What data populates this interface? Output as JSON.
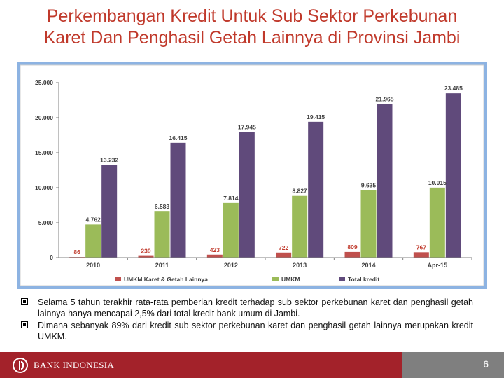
{
  "title": {
    "line1": "Perkembangan Kredit Untuk Sub Sektor Perkebunan",
    "line2": "Karet Dan Penghasil Getah Lainnya di Provinsi Jambi"
  },
  "chart_data": {
    "type": "bar",
    "categories": [
      "2010",
      "2011",
      "2012",
      "2013",
      "2014",
      "Apr-15"
    ],
    "ylim": [
      0,
      25000
    ],
    "yticks": [
      "0",
      "5.000",
      "10.000",
      "15.000",
      "20.000",
      "25.000"
    ],
    "ytick_values": [
      0,
      5000,
      10000,
      15000,
      20000,
      25000
    ],
    "legend_position": "bottom",
    "grid": false,
    "series": [
      {
        "name": "UMKM Karet & Getah Lainnya",
        "color": "#c0504d",
        "values": [
          86,
          239,
          423,
          722,
          809,
          767
        ],
        "labels": [
          "86",
          "239",
          "423",
          "722",
          "809",
          "767"
        ]
      },
      {
        "name": "UMKM",
        "color": "#9bbb59",
        "values": [
          4762,
          6583,
          7814,
          8827,
          9635,
          10015
        ],
        "labels": [
          "4.762",
          "6.583",
          "7.814",
          "8.827",
          "9.635",
          "10.015"
        ]
      },
      {
        "name": "Total kredit",
        "color": "#604a7b",
        "values": [
          13232,
          16415,
          17945,
          19415,
          21965,
          23485
        ],
        "labels": [
          "13.232",
          "16.415",
          "17.945",
          "19.415",
          "21.965",
          "23.485"
        ]
      }
    ]
  },
  "bullets": [
    "Selama 5 tahun terakhir rata-rata pemberian kredit terhadap sub sektor perkebunan karet dan penghasil getah lainnya hanya mencapai 2,5% dari total kredit bank umum di Jambi.",
    "Dimana sebanyak 89% dari kredit sub sektor perkebunan karet dan penghasil getah lainnya merupakan kredit UMKM."
  ],
  "footer": {
    "logo_text": "BANK INDONESIA",
    "page_number": "6"
  }
}
